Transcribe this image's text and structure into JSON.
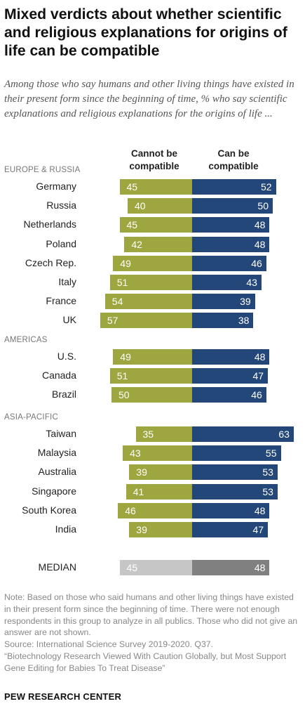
{
  "title": "Mixed verdicts about whether scientific and religious explanations for origins of life can be compatible",
  "subtitle": "Among those who say humans and other living things have existed in their present form since the beginning of time, % who say scientific explanations and religious explanations for the origins of life ...",
  "colors": {
    "cannot": "#9da63f",
    "can": "#244779",
    "median_cannot": "#c6c6c6",
    "median_can": "#808080"
  },
  "chart_data": {
    "type": "bar",
    "series": [
      {
        "name": "Cannot be compatible"
      },
      {
        "name": "Can be compatible"
      }
    ],
    "groups": [
      {
        "label": "EUROPE & RUSSIA",
        "rows": [
          {
            "country": "Germany",
            "cannot": 45,
            "can": 52
          },
          {
            "country": "Russia",
            "cannot": 40,
            "can": 50
          },
          {
            "country": "Netherlands",
            "cannot": 45,
            "can": 48
          },
          {
            "country": "Poland",
            "cannot": 42,
            "can": 48
          },
          {
            "country": "Czech Rep.",
            "cannot": 49,
            "can": 46
          },
          {
            "country": "Italy",
            "cannot": 51,
            "can": 43
          },
          {
            "country": "France",
            "cannot": 54,
            "can": 39
          },
          {
            "country": "UK",
            "cannot": 57,
            "can": 38
          }
        ]
      },
      {
        "label": "AMERICAS",
        "rows": [
          {
            "country": "U.S.",
            "cannot": 49,
            "can": 48
          },
          {
            "country": "Canada",
            "cannot": 51,
            "can": 47
          },
          {
            "country": "Brazil",
            "cannot": 50,
            "can": 46
          }
        ]
      },
      {
        "label": "ASIA-PACIFIC",
        "rows": [
          {
            "country": "Taiwan",
            "cannot": 35,
            "can": 63
          },
          {
            "country": "Malaysia",
            "cannot": 43,
            "can": 55
          },
          {
            "country": "Australia",
            "cannot": 39,
            "can": 53
          },
          {
            "country": "Singapore",
            "cannot": 41,
            "can": 53
          },
          {
            "country": "South Korea",
            "cannot": 46,
            "can": 48
          },
          {
            "country": "India",
            "cannot": 39,
            "can": 47
          }
        ]
      }
    ],
    "median": {
      "country": "MEDIAN",
      "cannot": 45,
      "can": 48
    }
  },
  "note": "Note: Based on those who said humans and other living things have existed in their present form since the beginning of time. There were not enough respondents in this group to analyze in all publics. Those who did not give an answer are not shown.",
  "source": "Source: International Science Survey 2019-2020. Q37.",
  "report": "“Biotechnology Research Viewed With Caution Globally, but Most Support Gene Editing for Babies To Treat Disease”",
  "logo": "PEW RESEARCH CENTER"
}
